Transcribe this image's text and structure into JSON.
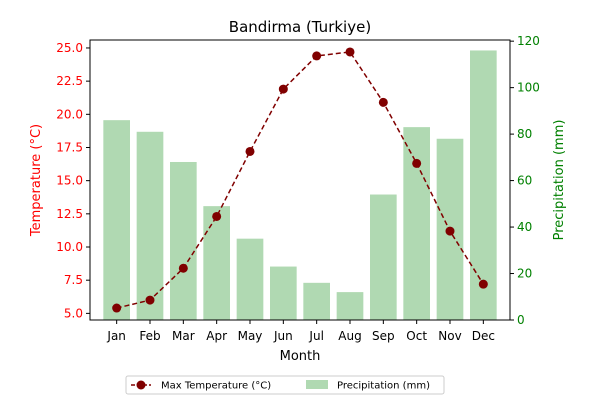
{
  "chart_data": {
    "type": "bar+line",
    "title": "Bandirma (Turkiye)",
    "xlabel": "Month",
    "categories": [
      "Jan",
      "Feb",
      "Mar",
      "Apr",
      "May",
      "Jun",
      "Jul",
      "Aug",
      "Sep",
      "Oct",
      "Nov",
      "Dec"
    ],
    "left_axis": {
      "label": "Temperature (°C)",
      "color": "#ff0000",
      "ylim": [
        4.5,
        25.6
      ],
      "ticks": [
        "5.0",
        "7.5",
        "10.0",
        "12.5",
        "15.0",
        "17.5",
        "20.0",
        "22.5",
        "25.0"
      ]
    },
    "right_axis": {
      "label": "Precipitation (mm)",
      "color": "#008000",
      "ylim": [
        0,
        120.5
      ],
      "ticks": [
        "0",
        "20",
        "40",
        "60",
        "80",
        "100",
        "120"
      ]
    },
    "series": [
      {
        "name": "Max Temperature (°C)",
        "kind": "line",
        "axis": "left",
        "color": "#800000",
        "style": "dashed",
        "marker": "circle",
        "values": [
          5.4,
          6.0,
          8.4,
          12.3,
          17.2,
          21.9,
          24.4,
          24.7,
          20.9,
          16.3,
          11.2,
          7.2
        ]
      },
      {
        "name": "Precipitation (mm)",
        "kind": "bar",
        "axis": "right",
        "color": "#b0d9b2",
        "values": [
          86,
          81,
          68,
          49,
          35,
          23,
          16,
          12,
          54,
          83,
          78,
          116
        ]
      }
    ],
    "legend": {
      "placement": "bottom-center",
      "columns": 2
    },
    "grid": false
  }
}
